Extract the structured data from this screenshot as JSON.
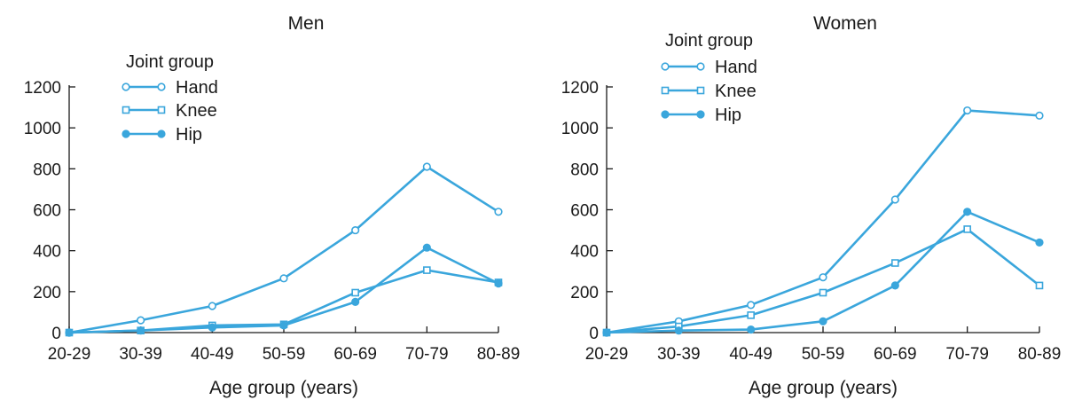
{
  "legend_title": "Joint group",
  "chart_data": [
    {
      "type": "line",
      "title": "Men",
      "xlabel": "Age group (years)",
      "ylabel": "",
      "categories": [
        "20-29",
        "30-39",
        "40-49",
        "50-59",
        "60-69",
        "70-79",
        "80-89"
      ],
      "ylim": [
        0,
        1200
      ],
      "yticks": [
        0,
        200,
        400,
        600,
        800,
        1000,
        1200
      ],
      "legend_position": "top-left",
      "grid": false,
      "series": [
        {
          "name": "Hand",
          "marker": "open-circle",
          "values": [
            0,
            60,
            130,
            265,
            500,
            810,
            590
          ]
        },
        {
          "name": "Knee",
          "marker": "open-square",
          "values": [
            0,
            10,
            35,
            40,
            195,
            305,
            245
          ]
        },
        {
          "name": "Hip",
          "marker": "filled-circle",
          "values": [
            0,
            10,
            25,
            35,
            150,
            415,
            240
          ]
        }
      ]
    },
    {
      "type": "line",
      "title": "Women",
      "xlabel": "Age group (years)",
      "ylabel": "",
      "categories": [
        "20-29",
        "30-39",
        "40-49",
        "50-59",
        "60-69",
        "70-79",
        "80-89"
      ],
      "ylim": [
        0,
        1200
      ],
      "yticks": [
        0,
        200,
        400,
        600,
        800,
        1000,
        1200
      ],
      "legend_position": "top-left",
      "grid": false,
      "series": [
        {
          "name": "Hand",
          "marker": "open-circle",
          "values": [
            0,
            55,
            135,
            270,
            650,
            1085,
            1060
          ]
        },
        {
          "name": "Knee",
          "marker": "open-square",
          "values": [
            0,
            30,
            85,
            195,
            340,
            505,
            230
          ]
        },
        {
          "name": "Hip",
          "marker": "filled-circle",
          "values": [
            0,
            10,
            15,
            55,
            230,
            590,
            440
          ]
        }
      ]
    }
  ],
  "colors": {
    "series": "#3aa6dc",
    "axis": "#1a1a1a",
    "text": "#1a1a1a"
  }
}
